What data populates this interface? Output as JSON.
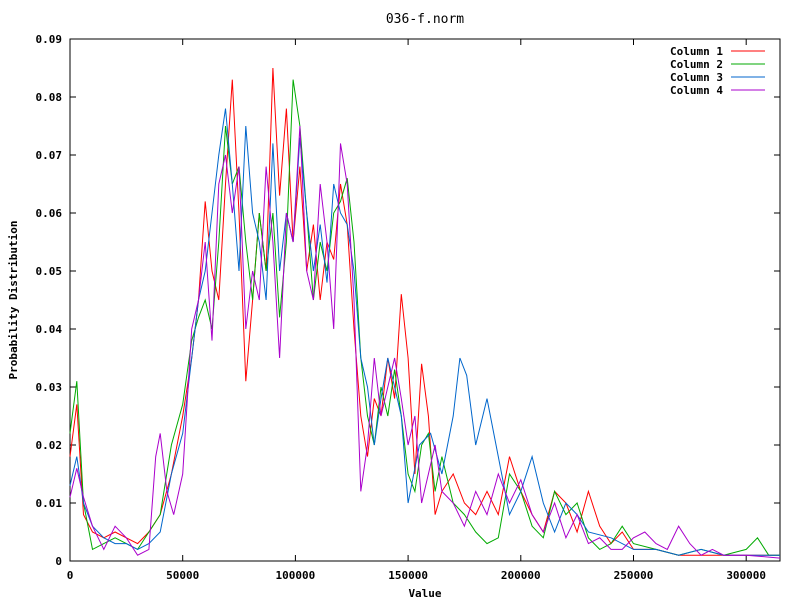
{
  "chart_data": {
    "type": "line",
    "title": "036-f.norm",
    "xlabel": "Value",
    "ylabel": "Probability Distribution",
    "xlim": [
      0,
      315000
    ],
    "ylim": [
      0,
      0.09
    ],
    "xticks": [
      0,
      50000,
      100000,
      150000,
      200000,
      250000,
      300000
    ],
    "xtick_labels": [
      "0",
      "50000",
      "100000",
      "150000",
      "200000",
      "250000",
      "300000"
    ],
    "yticks": [
      0,
      0.01,
      0.02,
      0.03,
      0.04,
      0.05,
      0.06,
      0.07,
      0.08,
      0.09
    ],
    "ytick_labels": [
      "0",
      "0.01",
      "0.02",
      "0.03",
      "0.04",
      "0.05",
      "0.06",
      "0.07",
      "0.08",
      "0.09"
    ],
    "grid": false,
    "legend_position": "top-right",
    "series": [
      {
        "name": "Column 1",
        "color": "#ff0000",
        "x": [
          0,
          3000,
          6000,
          10000,
          15000,
          20000,
          25000,
          30000,
          35000,
          40000,
          45000,
          50000,
          54000,
          57000,
          60000,
          63000,
          66000,
          69000,
          72000,
          75000,
          78000,
          81000,
          84000,
          87000,
          90000,
          93000,
          96000,
          99000,
          102000,
          105000,
          108000,
          111000,
          114000,
          117000,
          120000,
          123000,
          126000,
          129000,
          132000,
          135000,
          138000,
          141000,
          144000,
          147000,
          150000,
          153000,
          156000,
          159000,
          162000,
          165000,
          170000,
          175000,
          180000,
          185000,
          190000,
          195000,
          200000,
          205000,
          210000,
          215000,
          220000,
          225000,
          230000,
          235000,
          240000,
          245000,
          250000,
          260000,
          270000,
          280000,
          290000,
          300000,
          315000
        ],
        "y": [
          0.018,
          0.027,
          0.008,
          0.005,
          0.004,
          0.005,
          0.004,
          0.003,
          0.005,
          0.008,
          0.015,
          0.025,
          0.035,
          0.045,
          0.062,
          0.05,
          0.045,
          0.065,
          0.083,
          0.06,
          0.031,
          0.045,
          0.06,
          0.05,
          0.085,
          0.063,
          0.078,
          0.055,
          0.068,
          0.05,
          0.058,
          0.045,
          0.055,
          0.052,
          0.065,
          0.058,
          0.04,
          0.025,
          0.018,
          0.028,
          0.025,
          0.035,
          0.028,
          0.046,
          0.035,
          0.015,
          0.034,
          0.025,
          0.008,
          0.012,
          0.015,
          0.01,
          0.008,
          0.012,
          0.008,
          0.018,
          0.012,
          0.008,
          0.005,
          0.012,
          0.01,
          0.005,
          0.012,
          0.006,
          0.003,
          0.005,
          0.002,
          0.002,
          0.001,
          0.001,
          0.001,
          0.001,
          0.001
        ]
      },
      {
        "name": "Column 2",
        "color": "#00aa00",
        "x": [
          0,
          3000,
          6000,
          10000,
          15000,
          20000,
          25000,
          30000,
          35000,
          40000,
          45000,
          50000,
          54000,
          57000,
          60000,
          63000,
          66000,
          69000,
          72000,
          75000,
          78000,
          81000,
          84000,
          87000,
          90000,
          93000,
          96000,
          99000,
          102000,
          105000,
          108000,
          111000,
          114000,
          117000,
          120000,
          123000,
          126000,
          129000,
          132000,
          135000,
          138000,
          141000,
          144000,
          147000,
          150000,
          153000,
          156000,
          159000,
          162000,
          165000,
          170000,
          175000,
          180000,
          185000,
          190000,
          195000,
          200000,
          205000,
          210000,
          215000,
          220000,
          225000,
          230000,
          235000,
          240000,
          245000,
          250000,
          260000,
          270000,
          280000,
          290000,
          300000,
          305000,
          310000,
          315000
        ],
        "y": [
          0.022,
          0.031,
          0.01,
          0.002,
          0.003,
          0.004,
          0.003,
          0.002,
          0.005,
          0.008,
          0.02,
          0.027,
          0.038,
          0.042,
          0.045,
          0.04,
          0.055,
          0.075,
          0.065,
          0.068,
          0.055,
          0.045,
          0.06,
          0.05,
          0.06,
          0.042,
          0.055,
          0.083,
          0.075,
          0.06,
          0.045,
          0.055,
          0.05,
          0.06,
          0.062,
          0.066,
          0.055,
          0.035,
          0.025,
          0.02,
          0.03,
          0.025,
          0.033,
          0.025,
          0.015,
          0.012,
          0.02,
          0.022,
          0.012,
          0.018,
          0.01,
          0.008,
          0.005,
          0.003,
          0.004,
          0.015,
          0.012,
          0.006,
          0.004,
          0.012,
          0.008,
          0.01,
          0.004,
          0.002,
          0.003,
          0.006,
          0.003,
          0.002,
          0.001,
          0.002,
          0.001,
          0.002,
          0.004,
          0.001,
          0.001
        ]
      },
      {
        "name": "Column 3",
        "color": "#0066cc",
        "x": [
          0,
          3000,
          6000,
          10000,
          15000,
          20000,
          25000,
          30000,
          35000,
          40000,
          45000,
          50000,
          54000,
          57000,
          60000,
          63000,
          66000,
          69000,
          72000,
          75000,
          78000,
          81000,
          84000,
          87000,
          90000,
          93000,
          96000,
          99000,
          102000,
          105000,
          108000,
          111000,
          114000,
          117000,
          120000,
          123000,
          126000,
          129000,
          132000,
          135000,
          138000,
          141000,
          144000,
          147000,
          150000,
          155000,
          160000,
          165000,
          170000,
          173000,
          176000,
          180000,
          185000,
          190000,
          195000,
          200000,
          205000,
          210000,
          215000,
          220000,
          225000,
          230000,
          240000,
          250000,
          260000,
          270000,
          280000,
          290000,
          300000,
          310000,
          315000
        ],
        "y": [
          0.013,
          0.018,
          0.01,
          0.006,
          0.004,
          0.003,
          0.003,
          0.002,
          0.003,
          0.005,
          0.015,
          0.022,
          0.035,
          0.045,
          0.05,
          0.06,
          0.07,
          0.078,
          0.065,
          0.05,
          0.075,
          0.06,
          0.055,
          0.045,
          0.072,
          0.05,
          0.06,
          0.055,
          0.073,
          0.06,
          0.05,
          0.058,
          0.048,
          0.065,
          0.06,
          0.058,
          0.05,
          0.035,
          0.03,
          0.02,
          0.028,
          0.035,
          0.03,
          0.025,
          0.01,
          0.02,
          0.022,
          0.015,
          0.025,
          0.035,
          0.032,
          0.02,
          0.028,
          0.018,
          0.008,
          0.012,
          0.018,
          0.01,
          0.005,
          0.01,
          0.008,
          0.005,
          0.004,
          0.002,
          0.002,
          0.001,
          0.002,
          0.001,
          0.001,
          0.001,
          0.001
        ]
      },
      {
        "name": "Column 4",
        "color": "#aa00cc",
        "x": [
          0,
          3000,
          6000,
          10000,
          15000,
          20000,
          25000,
          30000,
          35000,
          38000,
          40000,
          43000,
          46000,
          50000,
          54000,
          57000,
          60000,
          63000,
          66000,
          69000,
          72000,
          75000,
          78000,
          81000,
          84000,
          87000,
          90000,
          93000,
          96000,
          99000,
          102000,
          105000,
          108000,
          111000,
          114000,
          117000,
          120000,
          123000,
          126000,
          129000,
          132000,
          135000,
          138000,
          141000,
          144000,
          147000,
          150000,
          153000,
          156000,
          159000,
          162000,
          165000,
          170000,
          175000,
          180000,
          185000,
          190000,
          195000,
          200000,
          205000,
          210000,
          215000,
          220000,
          225000,
          230000,
          235000,
          240000,
          245000,
          250000,
          255000,
          260000,
          265000,
          270000,
          275000,
          280000,
          285000,
          290000,
          300000,
          315000
        ],
        "y": [
          0.011,
          0.016,
          0.011,
          0.006,
          0.002,
          0.006,
          0.004,
          0.001,
          0.002,
          0.018,
          0.022,
          0.012,
          0.008,
          0.015,
          0.04,
          0.045,
          0.055,
          0.038,
          0.065,
          0.07,
          0.06,
          0.068,
          0.04,
          0.05,
          0.045,
          0.068,
          0.055,
          0.035,
          0.06,
          0.055,
          0.075,
          0.05,
          0.045,
          0.065,
          0.055,
          0.04,
          0.072,
          0.065,
          0.045,
          0.012,
          0.02,
          0.035,
          0.025,
          0.03,
          0.035,
          0.028,
          0.02,
          0.025,
          0.01,
          0.015,
          0.02,
          0.012,
          0.01,
          0.006,
          0.012,
          0.008,
          0.015,
          0.01,
          0.014,
          0.008,
          0.005,
          0.01,
          0.004,
          0.008,
          0.003,
          0.004,
          0.002,
          0.002,
          0.004,
          0.005,
          0.003,
          0.002,
          0.006,
          0.003,
          0.001,
          0.002,
          0.001,
          0.001,
          0.0005
        ]
      }
    ]
  }
}
